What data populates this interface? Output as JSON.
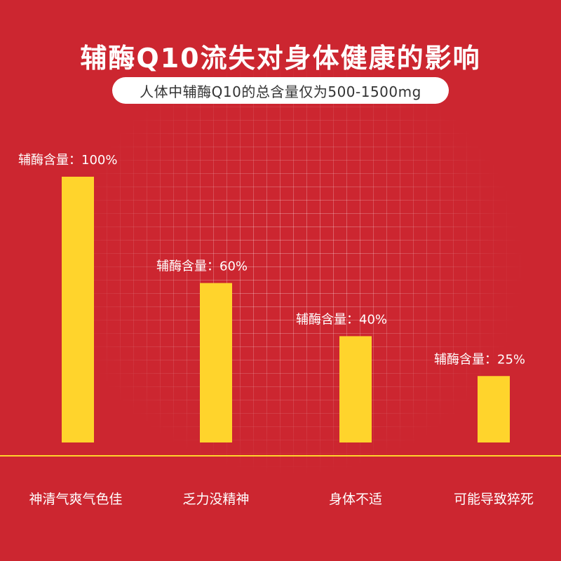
{
  "title": "辅酶Q10流失对身体健康的影响",
  "subtitle": "人体中辅酶Q10的总含量仅为500-1500mg",
  "colors": {
    "background": "#cc2630",
    "bar": "#ffd42c",
    "baseline": "#ffd42c",
    "text": "#ffffff"
  },
  "chart_data": {
    "type": "bar",
    "categories": [
      "神清气爽气色佳",
      "乏力没精神",
      "身体不适",
      "可能导致猝死"
    ],
    "values": [
      100,
      60,
      40,
      25
    ],
    "data_labels": [
      "辅酶含量：100%",
      "辅酶含量：60%",
      "辅酶含量：40%",
      "辅酶含量：25%"
    ],
    "ylim": [
      0,
      100
    ],
    "grid": false
  }
}
